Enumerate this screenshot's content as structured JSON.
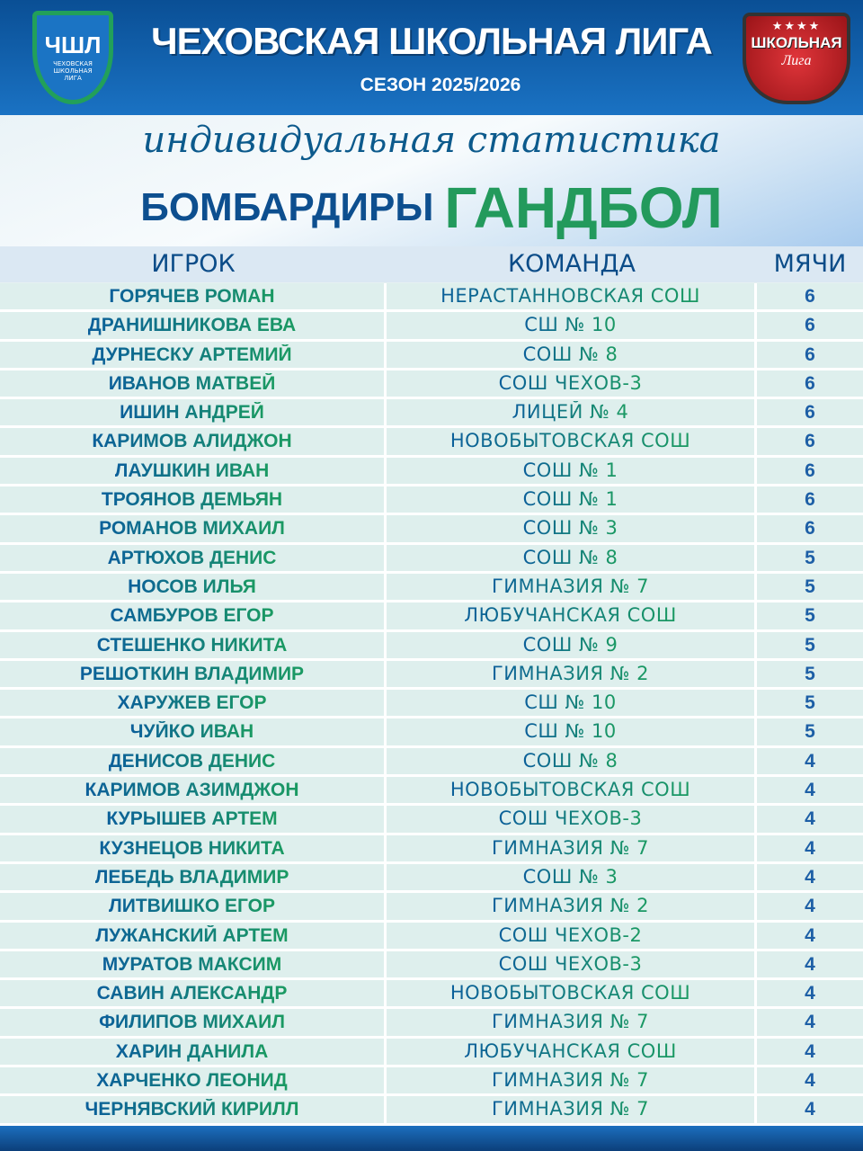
{
  "header": {
    "title": "ЧЕХОВСКАЯ ШКОЛЬНАЯ ЛИГА",
    "season": "СЕЗОН 2025/2026",
    "logo_left": {
      "abbr": "ЧШЛ",
      "text": "ЧЕХОВСКАЯ ШКОЛЬНАЯ ЛИГА"
    },
    "logo_right": {
      "text": "ШКОЛЬНАЯ",
      "script": "Лига"
    }
  },
  "banner": {
    "script": "индивидуальная статистика",
    "subtitle": "БОМБАРДИРЫ",
    "sport": "ГАНДБОЛ"
  },
  "colors": {
    "header": "#1a72c3",
    "accent_green": "#239a5c",
    "text_blue": "#0b4c88"
  },
  "table": {
    "headers": [
      "ИГРОК",
      "КОМАНДА",
      "МЯЧИ"
    ],
    "rows": [
      {
        "player": "ГОРЯЧЕВ РОМАН",
        "team": "НЕРАСТАННОВСКАЯ СОШ",
        "goals": "6"
      },
      {
        "player": "ДРАНИШНИКОВА ЕВА",
        "team": "СШ № 10",
        "goals": "6"
      },
      {
        "player": "ДУРНЕСКУ АРТЕМИЙ",
        "team": "СОШ № 8",
        "goals": "6"
      },
      {
        "player": "ИВАНОВ МАТВЕЙ",
        "team": "СОШ ЧЕХОВ-3",
        "goals": "6"
      },
      {
        "player": "ИШИН АНДРЕЙ",
        "team": "ЛИЦЕЙ № 4",
        "goals": "6"
      },
      {
        "player": "КАРИМОВ АЛИДЖОН",
        "team": "НОВОБЫТОВСКАЯ СОШ",
        "goals": "6"
      },
      {
        "player": "ЛАУШКИН ИВАН",
        "team": "СОШ № 1",
        "goals": "6"
      },
      {
        "player": "ТРОЯНОВ ДЕМЬЯН",
        "team": "СОШ № 1",
        "goals": "6"
      },
      {
        "player": "РОМАНОВ МИХАИЛ",
        "team": "СОШ № 3",
        "goals": "6"
      },
      {
        "player": "АРТЮХОВ ДЕНИС",
        "team": "СОШ № 8",
        "goals": "5"
      },
      {
        "player": "НОСОВ ИЛЬЯ",
        "team": "ГИМНАЗИЯ № 7",
        "goals": "5"
      },
      {
        "player": "САМБУРОВ ЕГОР",
        "team": "ЛЮБУЧАНСКАЯ СОШ",
        "goals": "5"
      },
      {
        "player": "СТЕШЕНКО НИКИТА",
        "team": "СОШ № 9",
        "goals": "5"
      },
      {
        "player": "РЕШОТКИН ВЛАДИМИР",
        "team": "ГИМНАЗИЯ № 2",
        "goals": "5"
      },
      {
        "player": "ХАРУЖЕВ ЕГОР",
        "team": "СШ № 10",
        "goals": "5"
      },
      {
        "player": "ЧУЙКО ИВАН",
        "team": "СШ № 10",
        "goals": "5"
      },
      {
        "player": "ДЕНИСОВ ДЕНИС",
        "team": "СОШ № 8",
        "goals": "4"
      },
      {
        "player": "КАРИМОВ АЗИМДЖОН",
        "team": "НОВОБЫТОВСКАЯ СОШ",
        "goals": "4"
      },
      {
        "player": "КУРЫШЕВ АРТЕМ",
        "team": "СОШ ЧЕХОВ-3",
        "goals": "4"
      },
      {
        "player": "КУЗНЕЦОВ НИКИТА",
        "team": "ГИМНАЗИЯ № 7",
        "goals": "4"
      },
      {
        "player": "ЛЕБЕДЬ ВЛАДИМИР",
        "team": "СОШ № 3",
        "goals": "4"
      },
      {
        "player": "ЛИТВИШКО ЕГОР",
        "team": "ГИМНАЗИЯ № 2",
        "goals": "4"
      },
      {
        "player": "ЛУЖАНСКИЙ АРТЕМ",
        "team": "СОШ ЧЕХОВ-2",
        "goals": "4"
      },
      {
        "player": "МУРАТОВ МАКСИМ",
        "team": "СОШ ЧЕХОВ-3",
        "goals": "4"
      },
      {
        "player": "САВИН АЛЕКСАНДР",
        "team": "НОВОБЫТОВСКАЯ СОШ",
        "goals": "4"
      },
      {
        "player": "ФИЛИПОВ МИХАИЛ",
        "team": "ГИМНАЗИЯ № 7",
        "goals": "4"
      },
      {
        "player": "ХАРИН ДАНИЛА",
        "team": "ЛЮБУЧАНСКАЯ СОШ",
        "goals": "4"
      },
      {
        "player": "ХАРЧЕНКО ЛЕОНИД",
        "team": "ГИМНАЗИЯ № 7",
        "goals": "4"
      },
      {
        "player": "ЧЕРНЯВСКИЙ КИРИЛЛ",
        "team": "ГИМНАЗИЯ № 7",
        "goals": "4"
      }
    ]
  }
}
